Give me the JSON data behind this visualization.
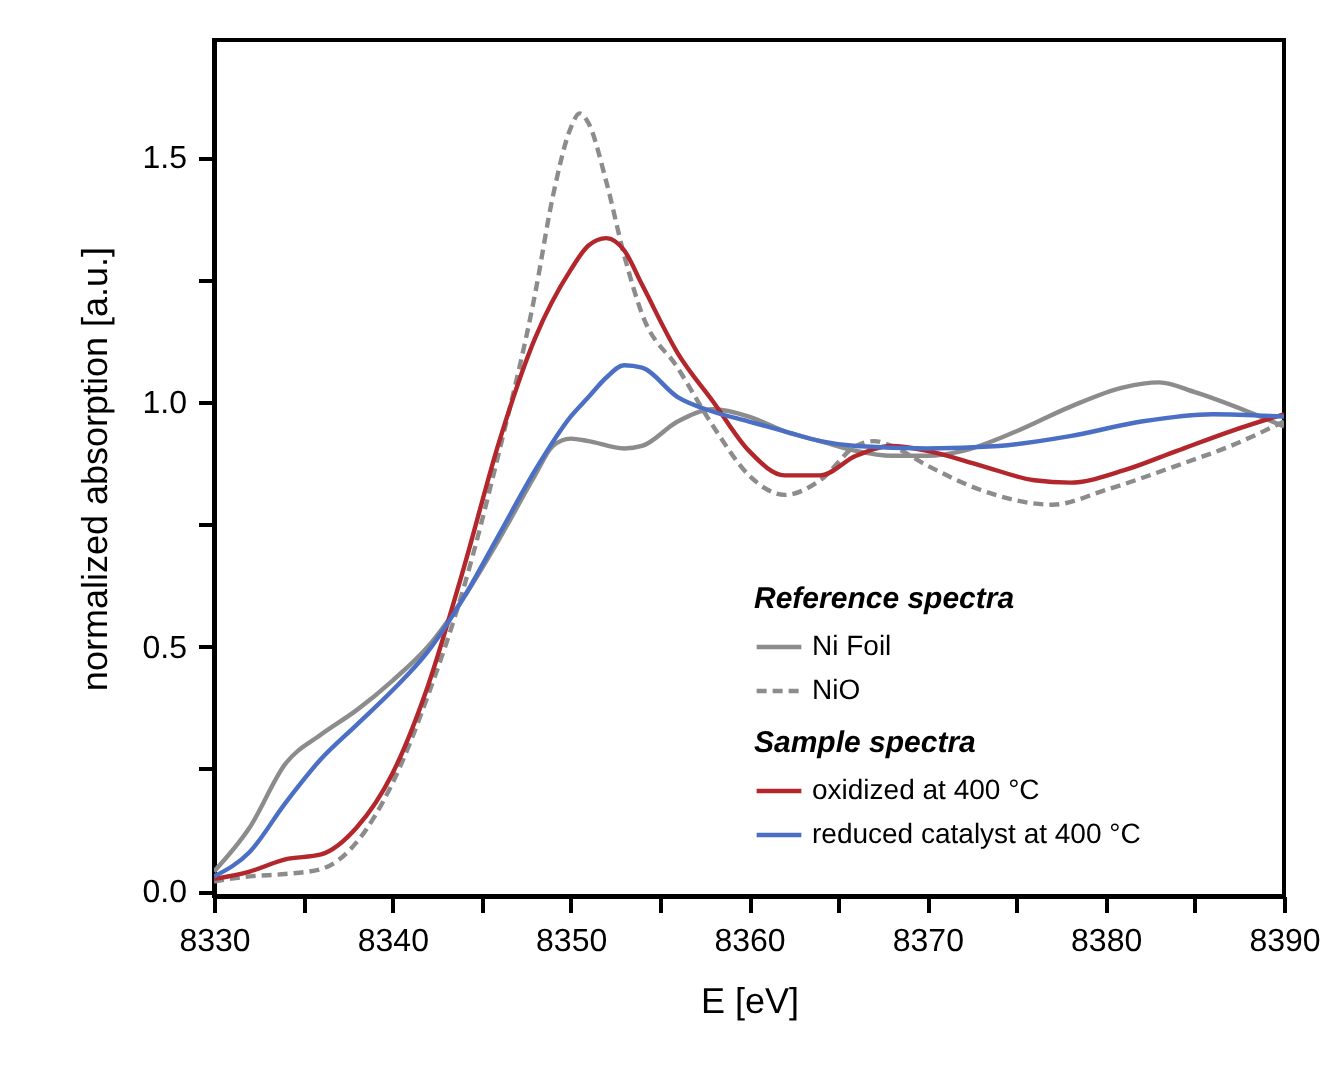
{
  "chart_data": {
    "type": "line",
    "xlabel": "E [eV]",
    "ylabel": "normalized absorption [a.u.]",
    "xlim": [
      8330,
      8390
    ],
    "ylim": [
      -0.01,
      1.74
    ],
    "xticks": [
      8330,
      {
        "value": 8335,
        "label": null
      },
      8340,
      {
        "value": 8345,
        "label": null
      },
      8350,
      {
        "value": 8355,
        "label": null
      },
      8360,
      {
        "value": 8365,
        "label": null
      },
      8370,
      {
        "value": 8375,
        "label": null
      },
      8380,
      {
        "value": 8385,
        "label": null
      },
      8390
    ],
    "yticks": [
      {
        "value": 0,
        "label": "0.0"
      },
      {
        "value": 0.25,
        "label": null
      },
      {
        "value": 0.5,
        "label": "0.5"
      },
      {
        "value": 0.75,
        "label": null
      },
      {
        "value": 1,
        "label": "1.0"
      },
      {
        "value": 1.25,
        "label": null
      },
      {
        "value": 1.5,
        "label": "1.5"
      }
    ],
    "legend_title": "Reference spectra",
    "annotations": [
      "Sample spectra"
    ],
    "legend": "bottom right",
    "grid": false,
    "series": [
      {
        "name": "Ni Foil",
        "color": "#8c8c8c",
        "line_style": "solid",
        "x": [
          8330,
          8332,
          8334,
          8336,
          8338,
          8340,
          8342,
          8344,
          8346,
          8348,
          8349,
          8350,
          8351,
          8353,
          8354,
          8356,
          8358,
          8360,
          8362,
          8364,
          8366,
          8368,
          8370,
          8372,
          8375,
          8378,
          8381,
          8383,
          8385,
          8388,
          8390
        ],
        "values": [
          0.04,
          0.13,
          0.26,
          0.32,
          0.37,
          0.43,
          0.5,
          0.6,
          0.72,
          0.85,
          0.91,
          0.925,
          0.92,
          0.905,
          0.91,
          0.96,
          0.985,
          0.97,
          0.94,
          0.92,
          0.9,
          0.89,
          0.89,
          0.9,
          0.94,
          0.99,
          1.03,
          1.04,
          1.02,
          0.98,
          0.95
        ]
      },
      {
        "name": "NiO",
        "color": "#8c8c8c",
        "line_style": "dashed",
        "x": [
          8330,
          8332,
          8334,
          8336,
          8338,
          8340,
          8342,
          8344,
          8346,
          8348,
          8349,
          8350,
          8350.5,
          8351,
          8352,
          8353,
          8354,
          8356,
          8358,
          8360,
          8362,
          8364,
          8366,
          8367,
          8368,
          8370,
          8373,
          8377,
          8380,
          8384,
          8387,
          8390
        ],
        "values": [
          0.02,
          0.03,
          0.035,
          0.045,
          0.1,
          0.22,
          0.4,
          0.62,
          0.9,
          1.22,
          1.42,
          1.56,
          1.59,
          1.57,
          1.45,
          1.3,
          1.18,
          1.07,
          0.95,
          0.85,
          0.81,
          0.84,
          0.91,
          0.92,
          0.91,
          0.87,
          0.82,
          0.79,
          0.82,
          0.87,
          0.91,
          0.96
        ]
      },
      {
        "name": "oxidized at 400 °C",
        "color": "#b3262b",
        "line_style": "solid",
        "x": [
          8330,
          8332,
          8334,
          8336,
          8338,
          8340,
          8342,
          8344,
          8346,
          8348,
          8350,
          8351,
          8352,
          8353,
          8354,
          8356,
          8358,
          8360,
          8362,
          8364,
          8366,
          8368,
          8370,
          8373,
          8376,
          8378,
          8381,
          8384,
          8387,
          8390
        ],
        "values": [
          0.025,
          0.04,
          0.065,
          0.075,
          0.13,
          0.24,
          0.42,
          0.66,
          0.92,
          1.13,
          1.27,
          1.32,
          1.335,
          1.31,
          1.24,
          1.1,
          1.0,
          0.9,
          0.85,
          0.85,
          0.89,
          0.91,
          0.9,
          0.87,
          0.84,
          0.835,
          0.86,
          0.9,
          0.94,
          0.975
        ]
      },
      {
        "name": "reduced catalyst at 400 °C",
        "color": "#4a6fc4",
        "line_style": "solid",
        "x": [
          8330,
          8332,
          8334,
          8336,
          8338,
          8340,
          8342,
          8344,
          8346,
          8348,
          8350,
          8351,
          8352,
          8353,
          8354,
          8356,
          8358,
          8360,
          8362,
          8364,
          8366,
          8370,
          8374,
          8378,
          8382,
          8386,
          8390
        ],
        "values": [
          0.03,
          0.08,
          0.18,
          0.27,
          0.34,
          0.41,
          0.49,
          0.6,
          0.73,
          0.86,
          0.97,
          1.01,
          1.05,
          1.075,
          1.07,
          1.01,
          0.98,
          0.96,
          0.94,
          0.92,
          0.91,
          0.905,
          0.91,
          0.93,
          0.96,
          0.975,
          0.97
        ]
      }
    ]
  }
}
